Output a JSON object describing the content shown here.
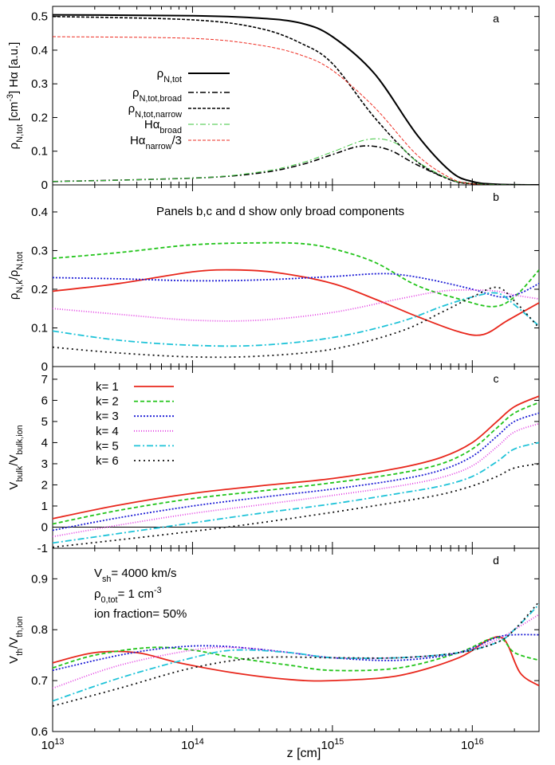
{
  "xlabel": "z [cm]",
  "x_ticks": [
    {
      "v": 10000000000000.0,
      "e": "13"
    },
    {
      "v": 100000000000000.0,
      "e": "14"
    },
    {
      "v": 1000000000000000.0,
      "e": "15"
    },
    {
      "v": 1e+16,
      "e": "16"
    }
  ],
  "colors": {
    "k1": "#e8271c",
    "k2": "#22c41a",
    "k3": "#1f1fd6",
    "k4": "#e23fe2",
    "k5": "#1fc3d8",
    "k6": "#111111",
    "black": "#000000",
    "red_thin": "#ee2b20",
    "green_thin": "#3dc63d"
  },
  "chart_data": [
    {
      "type": "line",
      "panel": "a",
      "ylabel": "ρN,tot [cm-3] Hα [a.u.]",
      "ylim": [
        0,
        0.53
      ],
      "yticks": [
        0,
        0.1,
        0.2,
        0.3,
        0.4,
        0.5
      ],
      "xscale": "log",
      "xlim": [
        10000000000000.0,
        3e+16
      ],
      "legend_placement": "center-left",
      "series": [
        {
          "name": "ρN,tot",
          "x": [
            10000000000000.0,
            100000000000000.0,
            300000000000000.0,
            600000000000000.0,
            1000000000000000.0,
            2000000000000000.0,
            4000000000000000.0,
            7000000000000000.0,
            1e+16,
            1.5e+16,
            3e+16
          ],
          "y": [
            0.505,
            0.502,
            0.495,
            0.48,
            0.44,
            0.33,
            0.15,
            0.04,
            0.01,
            0.002,
            0.0
          ]
        },
        {
          "name": "ρN,tot,broad",
          "x": [
            10000000000000.0,
            100000000000000.0,
            300000000000000.0,
            600000000000000.0,
            1000000000000000.0,
            1600000000000000.0,
            2500000000000000.0,
            4000000000000000.0,
            7000000000000000.0,
            1e+16,
            1.5e+16,
            3e+16
          ],
          "y": [
            0.01,
            0.02,
            0.035,
            0.06,
            0.09,
            0.115,
            0.105,
            0.06,
            0.015,
            0.004,
            0.001,
            0.0
          ]
        },
        {
          "name": "ρN,tot,narrow",
          "x": [
            10000000000000.0,
            100000000000000.0,
            300000000000000.0,
            600000000000000.0,
            1000000000000000.0,
            2000000000000000.0,
            4000000000000000.0,
            7000000000000000.0,
            1e+16,
            1.5e+16,
            3e+16
          ],
          "y": [
            0.5,
            0.49,
            0.465,
            0.42,
            0.36,
            0.2,
            0.07,
            0.015,
            0.003,
            0.0,
            0.0
          ]
        },
        {
          "name": "Hαbroad",
          "x": [
            10000000000000.0,
            100000000000000.0,
            300000000000000.0,
            600000000000000.0,
            1000000000000000.0,
            1800000000000000.0,
            2800000000000000.0,
            4000000000000000.0,
            7000000000000000.0,
            1e+16,
            1.5e+16,
            3e+16
          ],
          "y": [
            0.01,
            0.02,
            0.038,
            0.065,
            0.098,
            0.135,
            0.125,
            0.07,
            0.016,
            0.004,
            0.001,
            0.0
          ]
        },
        {
          "name": "Hαnarrow/3",
          "x": [
            10000000000000.0,
            100000000000000.0,
            300000000000000.0,
            600000000000000.0,
            1000000000000000.0,
            2000000000000000.0,
            4000000000000000.0,
            7000000000000000.0,
            1e+16,
            1.5e+16,
            3e+16
          ],
          "y": [
            0.44,
            0.435,
            0.415,
            0.385,
            0.34,
            0.23,
            0.09,
            0.02,
            0.003,
            0.0,
            0.0
          ]
        }
      ],
      "legend_labels": [
        {
          "base": "ρ",
          "sub": "N,tot",
          "tail": ""
        },
        {
          "base": "ρ",
          "sub": "N,tot,broad",
          "tail": ""
        },
        {
          "base": "ρ",
          "sub": "N,tot,narrow",
          "tail": ""
        },
        {
          "base": "Hα",
          "sub": "broad",
          "tail": ""
        },
        {
          "base": "Hα",
          "sub": "narrow",
          "tail": "/3"
        }
      ]
    },
    {
      "type": "line",
      "panel": "b",
      "ylabel": "ρN,k/ρN,tot",
      "ylim": [
        0,
        0.47
      ],
      "yticks": [
        0,
        0.1,
        0.2,
        0.3,
        0.4
      ],
      "xscale": "log",
      "xlim": [
        10000000000000.0,
        3e+16
      ],
      "annotation": "Panels b,c and d show only broad components",
      "series": [
        {
          "name": "k= 1",
          "x": [
            10000000000000.0,
            30000000000000.0,
            100000000000000.0,
            200000000000000.0,
            400000000000000.0,
            1000000000000000.0,
            2000000000000000.0,
            4000000000000000.0,
            8000000000000000.0,
            1.2e+16,
            1.8e+16,
            3e+16
          ],
          "y": [
            0.195,
            0.215,
            0.245,
            0.25,
            0.243,
            0.215,
            0.175,
            0.13,
            0.09,
            0.083,
            0.12,
            0.165
          ]
        },
        {
          "name": "k= 2",
          "x": [
            10000000000000.0,
            30000000000000.0,
            100000000000000.0,
            300000000000000.0,
            600000000000000.0,
            1000000000000000.0,
            2000000000000000.0,
            4000000000000000.0,
            8000000000000000.0,
            1.4e+16,
            2e+16,
            3e+16
          ],
          "y": [
            0.28,
            0.295,
            0.315,
            0.32,
            0.318,
            0.305,
            0.27,
            0.21,
            0.175,
            0.155,
            0.18,
            0.25
          ]
        },
        {
          "name": "k= 3",
          "x": [
            10000000000000.0,
            30000000000000.0,
            100000000000000.0,
            300000000000000.0,
            1000000000000000.0,
            2000000000000000.0,
            3000000000000000.0,
            5000000000000000.0,
            1e+16,
            1.6e+16,
            2.2e+16,
            3e+16
          ],
          "y": [
            0.23,
            0.227,
            0.222,
            0.224,
            0.233,
            0.24,
            0.238,
            0.225,
            0.2,
            0.18,
            0.19,
            0.215
          ]
        },
        {
          "name": "k= 4",
          "x": [
            10000000000000.0,
            30000000000000.0,
            100000000000000.0,
            300000000000000.0,
            1000000000000000.0,
            3000000000000000.0,
            6000000000000000.0,
            1e+16,
            1.5e+16,
            2e+16,
            3e+16
          ],
          "y": [
            0.15,
            0.135,
            0.12,
            0.12,
            0.14,
            0.175,
            0.195,
            0.198,
            0.195,
            0.185,
            0.175
          ]
        },
        {
          "name": "k= 5",
          "x": [
            10000000000000.0,
            30000000000000.0,
            100000000000000.0,
            300000000000000.0,
            1000000000000000.0,
            3000000000000000.0,
            6000000000000000.0,
            1e+16,
            1.5e+16,
            2e+16,
            3e+16
          ],
          "y": [
            0.092,
            0.068,
            0.055,
            0.055,
            0.075,
            0.115,
            0.155,
            0.18,
            0.19,
            0.16,
            0.105
          ]
        },
        {
          "name": "k= 6",
          "x": [
            10000000000000.0,
            30000000000000.0,
            100000000000000.0,
            300000000000000.0,
            1000000000000000.0,
            3000000000000000.0,
            6000000000000000.0,
            1e+16,
            1.5e+16,
            2e+16,
            3e+16
          ],
          "y": [
            0.05,
            0.035,
            0.025,
            0.027,
            0.045,
            0.09,
            0.14,
            0.18,
            0.205,
            0.17,
            0.1
          ]
        }
      ]
    },
    {
      "type": "line",
      "panel": "c",
      "ylabel": "Vbulk/Vbulk,ion",
      "ylim": [
        -1,
        7.6
      ],
      "yticks": [
        -1,
        0,
        1,
        2,
        3,
        4,
        5,
        6,
        7
      ],
      "xscale": "log",
      "xlim": [
        10000000000000.0,
        3e+16
      ],
      "legend_placement": "top-left",
      "series": [
        {
          "name": "k= 1",
          "x": [
            10000000000000.0,
            30000000000000.0,
            100000000000000.0,
            300000000000000.0,
            1000000000000000.0,
            3000000000000000.0,
            6000000000000000.0,
            1e+16,
            1.5e+16,
            2e+16,
            3e+16
          ],
          "y": [
            0.4,
            1.05,
            1.6,
            1.95,
            2.3,
            2.8,
            3.3,
            4.0,
            5.0,
            5.7,
            6.2
          ]
        },
        {
          "name": "k= 2",
          "x": [
            10000000000000.0,
            30000000000000.0,
            100000000000000.0,
            300000000000000.0,
            1000000000000000.0,
            3000000000000000.0,
            6000000000000000.0,
            1e+16,
            1.5e+16,
            2e+16,
            3e+16
          ],
          "y": [
            0.15,
            0.8,
            1.35,
            1.7,
            2.1,
            2.55,
            3.0,
            3.7,
            4.7,
            5.4,
            5.9
          ]
        },
        {
          "name": "k= 3",
          "x": [
            10000000000000.0,
            30000000000000.0,
            100000000000000.0,
            300000000000000.0,
            1000000000000000.0,
            3000000000000000.0,
            6000000000000000.0,
            1e+16,
            1.5e+16,
            2e+16,
            3e+16
          ],
          "y": [
            -0.15,
            0.45,
            1.0,
            1.4,
            1.8,
            2.25,
            2.7,
            3.35,
            4.3,
            5.0,
            5.4
          ]
        },
        {
          "name": "k= 4",
          "x": [
            10000000000000.0,
            30000000000000.0,
            100000000000000.0,
            300000000000000.0,
            1000000000000000.0,
            3000000000000000.0,
            6000000000000000.0,
            1e+16,
            1.5e+16,
            2e+16,
            3e+16
          ],
          "y": [
            -0.45,
            0.1,
            0.65,
            1.05,
            1.5,
            1.95,
            2.35,
            2.9,
            3.8,
            4.5,
            4.9
          ]
        },
        {
          "name": "k= 5",
          "x": [
            10000000000000.0,
            30000000000000.0,
            100000000000000.0,
            300000000000000.0,
            1000000000000000.0,
            3000000000000000.0,
            6000000000000000.0,
            1e+16,
            1.5e+16,
            2e+16,
            3e+16
          ],
          "y": [
            -0.75,
            -0.3,
            0.2,
            0.65,
            1.1,
            1.6,
            1.95,
            2.4,
            3.1,
            3.7,
            4.0
          ]
        },
        {
          "name": "k= 6",
          "x": [
            10000000000000.0,
            30000000000000.0,
            100000000000000.0,
            300000000000000.0,
            1000000000000000.0,
            3000000000000000.0,
            6000000000000000.0,
            1e+16,
            1.5e+16,
            2e+16,
            3e+16
          ],
          "y": [
            -0.95,
            -0.6,
            -0.2,
            0.2,
            0.7,
            1.2,
            1.55,
            1.95,
            2.4,
            2.8,
            3.0
          ]
        }
      ]
    },
    {
      "type": "line",
      "panel": "d",
      "ylabel": "Vth/Vth,ion",
      "ylim": [
        0.6,
        0.96
      ],
      "yticks": [
        0.6,
        0.7,
        0.8,
        0.9
      ],
      "xscale": "log",
      "xlim": [
        10000000000000.0,
        3e+16
      ],
      "annotations": [
        {
          "base": "V",
          "sub": "sh",
          "sup": "",
          "tail": "= 4000 km/s"
        },
        {
          "base": "ρ",
          "sub": "0,tot",
          "sup": "-3",
          "tail": "= 1 cm"
        },
        {
          "base": "ion fraction= 50%",
          "sub": "",
          "sup": "",
          "tail": ""
        }
      ],
      "series": [
        {
          "name": "k= 1",
          "x": [
            10000000000000.0,
            20000000000000.0,
            40000000000000.0,
            80000000000000.0,
            200000000000000.0,
            500000000000000.0,
            1000000000000000.0,
            3000000000000000.0,
            8000000000000000.0,
            1.3e+16,
            1.7e+16,
            2.2e+16,
            3e+16
          ],
          "y": [
            0.735,
            0.755,
            0.755,
            0.735,
            0.715,
            0.702,
            0.7,
            0.71,
            0.745,
            0.78,
            0.78,
            0.715,
            0.69
          ]
        },
        {
          "name": "k= 2",
          "x": [
            10000000000000.0,
            20000000000000.0,
            50000000000000.0,
            100000000000000.0,
            200000000000000.0,
            500000000000000.0,
            1000000000000000.0,
            3000000000000000.0,
            8000000000000000.0,
            1.5e+16,
            2e+16,
            3e+16
          ],
          "y": [
            0.725,
            0.75,
            0.765,
            0.76,
            0.745,
            0.73,
            0.72,
            0.725,
            0.755,
            0.785,
            0.755,
            0.74
          ]
        },
        {
          "name": "k= 3",
          "x": [
            10000000000000.0,
            30000000000000.0,
            70000000000000.0,
            150000000000000.0,
            400000000000000.0,
            1000000000000000.0,
            3000000000000000.0,
            8000000000000000.0,
            1.5e+16,
            2e+16,
            3e+16
          ],
          "y": [
            0.72,
            0.75,
            0.765,
            0.768,
            0.758,
            0.745,
            0.74,
            0.755,
            0.785,
            0.79,
            0.79
          ]
        },
        {
          "name": "k= 4",
          "x": [
            10000000000000.0,
            30000000000000.0,
            100000000000000.0,
            200000000000000.0,
            500000000000000.0,
            1000000000000000.0,
            3000000000000000.0,
            8000000000000000.0,
            1.5e+16,
            2e+16,
            3e+16
          ],
          "y": [
            0.685,
            0.73,
            0.76,
            0.765,
            0.755,
            0.745,
            0.745,
            0.755,
            0.78,
            0.8,
            0.83
          ]
        },
        {
          "name": "k= 5",
          "x": [
            10000000000000.0,
            30000000000000.0,
            100000000000000.0,
            200000000000000.0,
            500000000000000.0,
            1000000000000000.0,
            3000000000000000.0,
            8000000000000000.0,
            1.5e+16,
            2e+16,
            3e+16
          ],
          "y": [
            0.66,
            0.705,
            0.745,
            0.76,
            0.755,
            0.745,
            0.745,
            0.755,
            0.775,
            0.8,
            0.85
          ]
        },
        {
          "name": "k= 6",
          "x": [
            10000000000000.0,
            30000000000000.0,
            100000000000000.0,
            300000000000000.0,
            1000000000000000.0,
            3000000000000000.0,
            8000000000000000.0,
            1.5e+16,
            2e+16,
            3e+16
          ],
          "y": [
            0.65,
            0.685,
            0.725,
            0.745,
            0.745,
            0.745,
            0.755,
            0.775,
            0.8,
            0.855
          ]
        }
      ]
    }
  ]
}
